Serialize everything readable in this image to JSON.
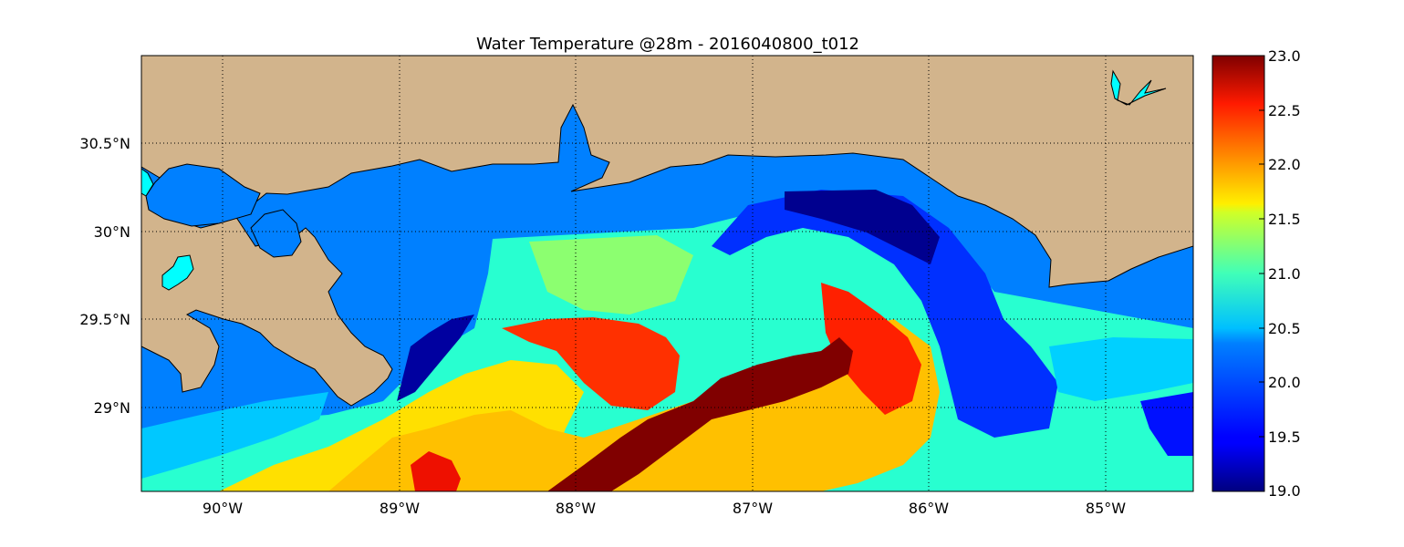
{
  "chart_data": {
    "type": "heatmap",
    "title": "Water Temperature @28m - 2016040800_t012",
    "xlabel": "",
    "ylabel": "",
    "x_ticks": [
      "90°W",
      "89°W",
      "88°W",
      "87°W",
      "86°W",
      "85°W"
    ],
    "y_ticks": [
      "29°N",
      "29.5°N",
      "30°N",
      "30.5°N"
    ],
    "xlim": [
      -90.47,
      -84.5
    ],
    "ylim": [
      28.55,
      31.0
    ],
    "grid": true,
    "colorbar": {
      "ticks": [
        "19.0",
        "19.5",
        "20.0",
        "20.5",
        "21.0",
        "21.5",
        "22.0",
        "22.5",
        "23.0"
      ],
      "range": [
        19.0,
        23.0
      ],
      "colormap": "jet"
    },
    "land_color": "#d2b48c",
    "masked_water_color": "#0080ff",
    "lake_color": "#00ffff"
  }
}
